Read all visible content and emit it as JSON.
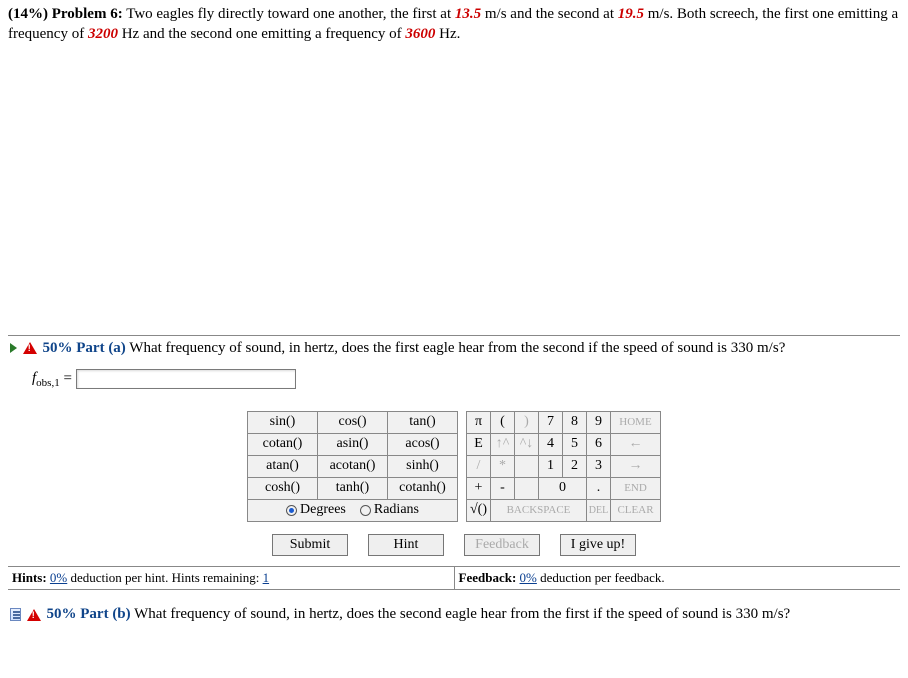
{
  "problem": {
    "weight": "(14%)",
    "label": "Problem 6:",
    "text_before_v1": "Two eagles fly directly toward one another, the first at ",
    "v1": "13.5",
    "units_v": " m/s and the second at ",
    "v2": "19.5",
    "after_v2": " m/s. Both screech, the first one emitting a frequency of ",
    "f1": "3200",
    "between_f": " Hz and the second one emitting a frequency of ",
    "f2": "3600",
    "end": " Hz."
  },
  "part_a": {
    "pct": "50% Part (a)",
    "question": "What frequency of sound, in hertz, does the first eagle hear from the second if the speed of sound is 330 m/s?",
    "var_html": "f",
    "var_sub": "obs,1",
    "equals": " = "
  },
  "keypad": {
    "funcs": [
      [
        "sin()",
        "cos()",
        "tan()"
      ],
      [
        "cotan()",
        "asin()",
        "acos()"
      ],
      [
        "atan()",
        "acotan()",
        "sinh()"
      ],
      [
        "cosh()",
        "tanh()",
        "cotanh()"
      ]
    ],
    "mode": {
      "degrees": "Degrees",
      "radians": "Radians",
      "selected": "degrees"
    },
    "syms": {
      "pi": "π",
      "lp": "(",
      "rp": ")",
      "E": "E",
      "up": "↑^",
      "down": "^↓",
      "slash": "/",
      "star": "*",
      "plus": "+",
      "minus": "-",
      "seven": "7",
      "eight": "8",
      "nine": "9",
      "four": "4",
      "five": "5",
      "six": "6",
      "one": "1",
      "two": "2",
      "three": "3",
      "zero": "0",
      "dot": ".",
      "home": "HOME",
      "left": "←",
      "right": "→",
      "end": "END",
      "sqrt": "√()",
      "back": "BACKSPACE",
      "del": "DEL",
      "clear": "CLEAR"
    }
  },
  "actions": {
    "submit": "Submit",
    "hint": "Hint",
    "feedback": "Feedback",
    "giveup": "I give up!"
  },
  "hints_bar": {
    "hints_label": "Hints:",
    "hints_pct": "0%",
    "hints_text": " deduction per hint. Hints remaining: ",
    "hints_remaining": "1",
    "fb_label": "Feedback:",
    "fb_pct": "0%",
    "fb_text": " deduction per feedback."
  },
  "part_b": {
    "pct": "50% Part (b)",
    "question": "What frequency of sound, in hertz, does the second eagle hear from the first if the speed of sound is 330 m/s?"
  }
}
